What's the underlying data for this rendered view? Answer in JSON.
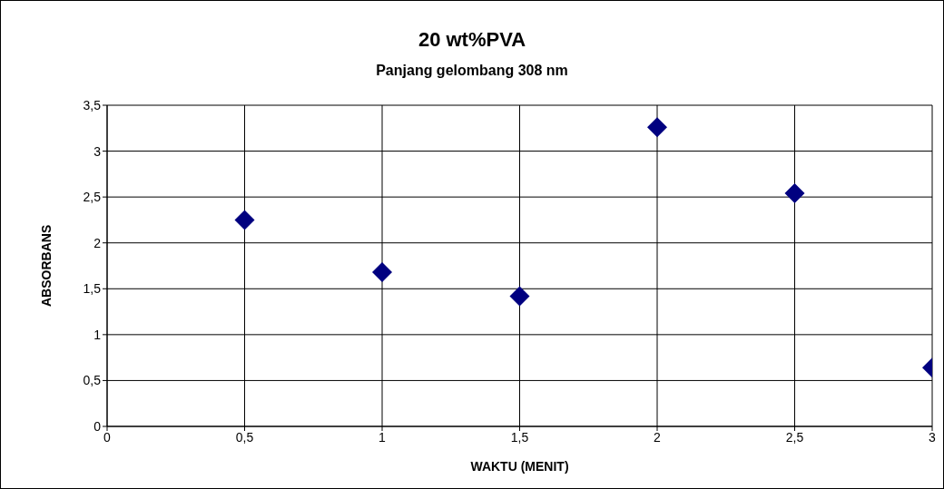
{
  "chart_data": {
    "type": "scatter",
    "title": "20 wt%PVA",
    "subtitle": "Panjang gelombang 308 nm",
    "xlabel": "WAKTU (MENIT)",
    "ylabel": "ABSORBANS",
    "x": [
      0.5,
      1,
      1.5,
      2,
      2.5,
      3
    ],
    "series": [
      {
        "color": "#000080",
        "values": [
          2.25,
          1.68,
          1.42,
          3.26,
          2.54,
          0.64
        ]
      }
    ],
    "xlim": [
      0,
      3
    ],
    "xticks": [
      0,
      {
        "value": 0.5,
        "label": "0,5"
      },
      1,
      {
        "value": 1.5,
        "label": "1,5"
      },
      2,
      {
        "value": 2.5,
        "label": "2,5"
      },
      3
    ],
    "ylim": [
      0,
      3.5
    ],
    "yticks": [
      0,
      {
        "value": 0.5,
        "label": "0,5"
      },
      1,
      {
        "value": 1.5,
        "label": "1,5"
      },
      2,
      {
        "value": 2.5,
        "label": "2,5"
      },
      3,
      {
        "value": 3.5,
        "label": "3,5"
      }
    ],
    "grid": true,
    "marker": "diamond",
    "legend": false
  }
}
